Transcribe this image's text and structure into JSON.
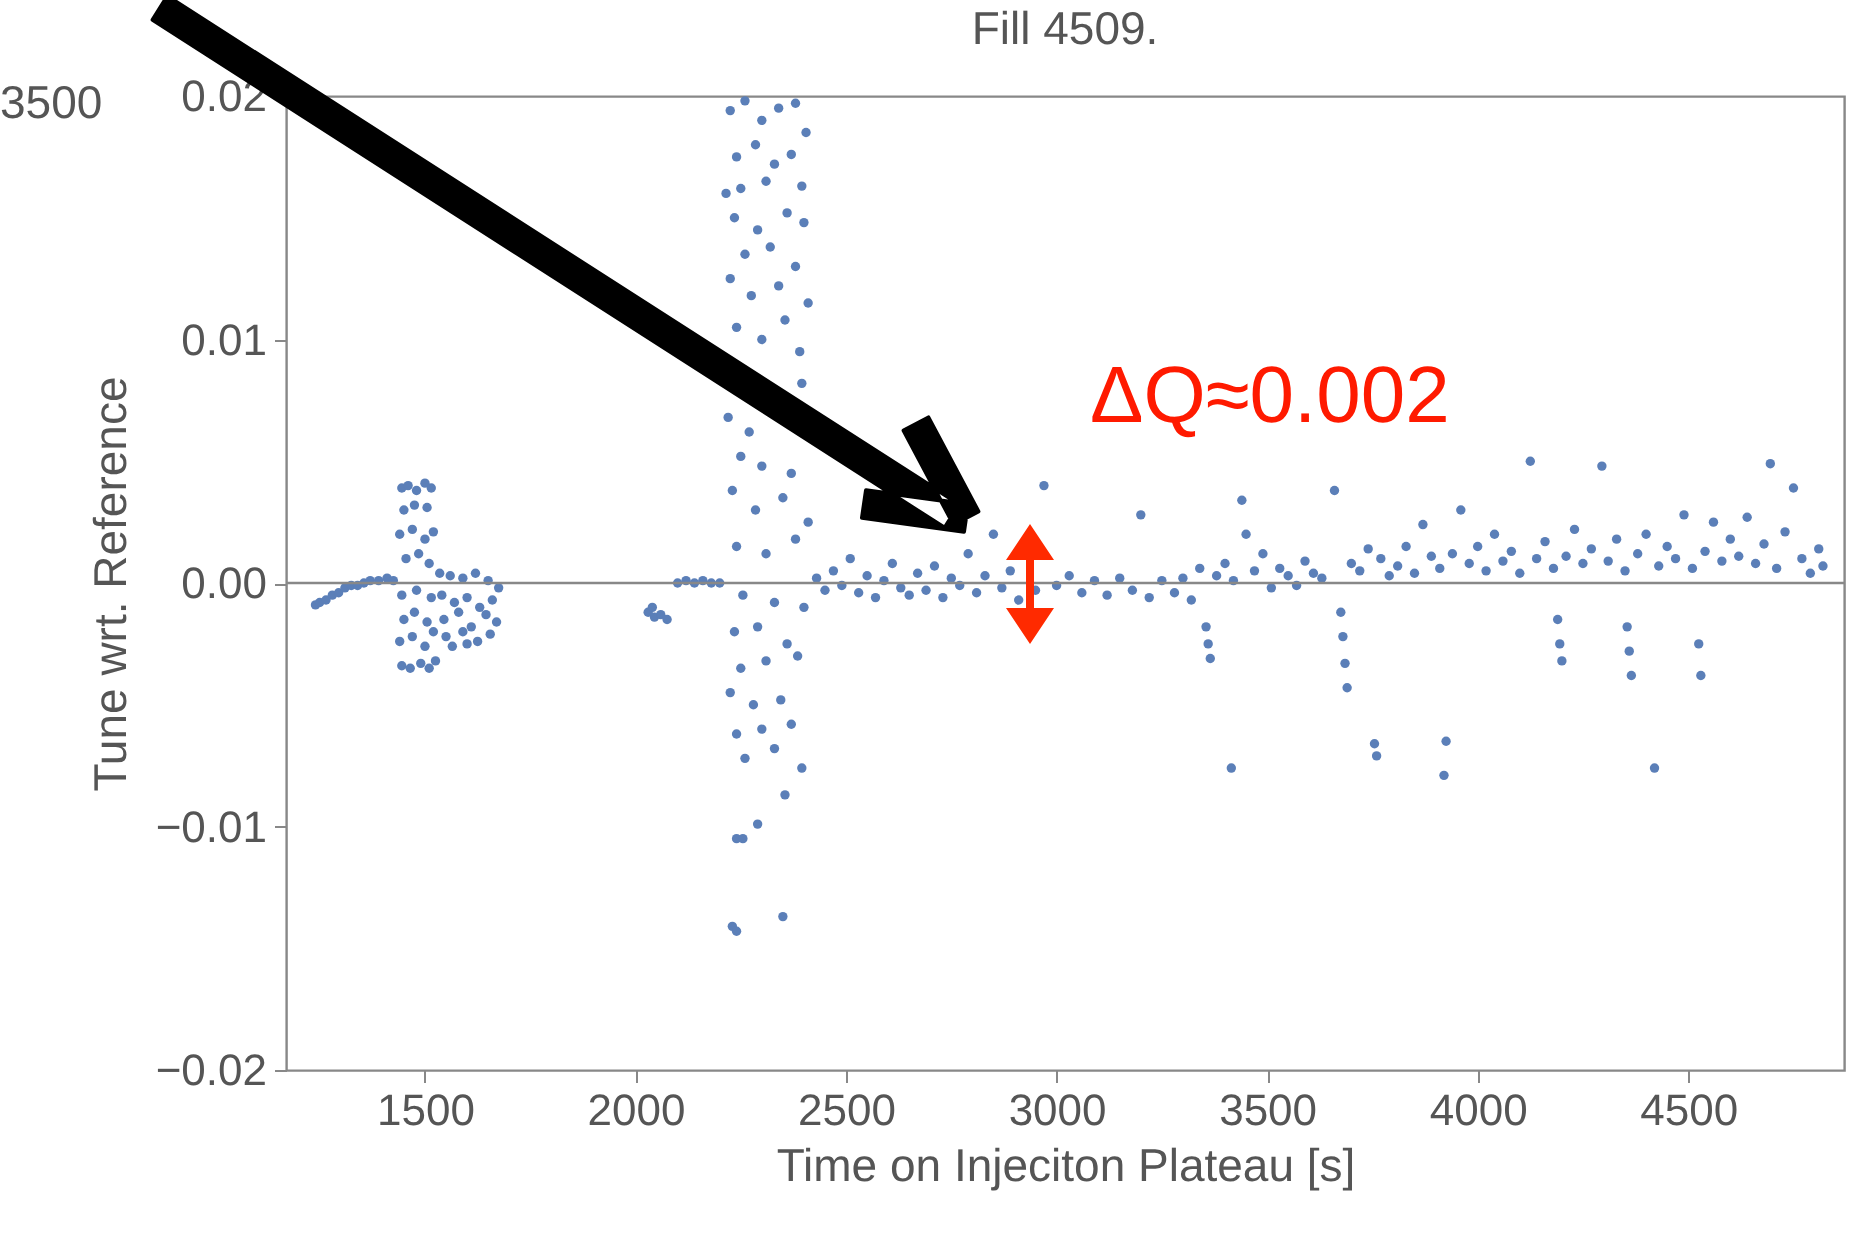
{
  "chart_data": {
    "type": "scatter",
    "title": "Fill 4509.",
    "xlabel": "Time on Injeciton Plateau [s]",
    "ylabel": "Tune wrt. Reference",
    "xlim": [
      1170,
      4870
    ],
    "xticks": [
      1500,
      2000,
      2500,
      3000,
      3500,
      4000,
      4500
    ],
    "ylim": [
      -0.02,
      0.02
    ],
    "yticks": [
      {
        "value": -0.02,
        "label": "−0.02"
      },
      {
        "value": -0.01,
        "label": "−0.01"
      },
      {
        "value": 0,
        "label": "0.00"
      },
      0.01,
      0.02
    ],
    "grid": false,
    "marker": "circle",
    "ref_lines": [
      {
        "axis": "y",
        "value": 0,
        "color": "#888888"
      }
    ],
    "annotations": [
      "ΔQ≈0.002",
      "3500"
    ],
    "series": [
      {
        "color": "#5b7fb8",
        "x": [
          1240,
          1250,
          1265,
          1280,
          1295,
          1310,
          1325,
          1340,
          1355,
          1370,
          1390,
          1410,
          1425,
          1445,
          1460,
          1480,
          1500,
          1515,
          1450,
          1475,
          1505,
          1440,
          1470,
          1500,
          1520,
          1455,
          1485,
          1510,
          1445,
          1480,
          1515,
          1450,
          1475,
          1505,
          1440,
          1470,
          1500,
          1520,
          1445,
          1465,
          1490,
          1510,
          1525,
          1535,
          1560,
          1590,
          1620,
          1650,
          1675,
          1540,
          1570,
          1600,
          1630,
          1660,
          1545,
          1580,
          1610,
          1645,
          1670,
          1550,
          1590,
          1625,
          1655,
          1565,
          1600,
          2030,
          2045,
          2060,
          2075,
          2040,
          2100,
          2120,
          2140,
          2160,
          2180,
          2200,
          2225,
          2260,
          2300,
          2340,
          2380,
          2405,
          2240,
          2285,
          2330,
          2370,
          2215,
          2250,
          2310,
          2395,
          2235,
          2290,
          2360,
          2400,
          2260,
          2320,
          2380,
          2225,
          2275,
          2340,
          2410,
          2240,
          2300,
          2355,
          2390,
          2395,
          2220,
          2270,
          2250,
          2300,
          2370,
          2230,
          2285,
          2350,
          2410,
          2240,
          2310,
          2380,
          2255,
          2330,
          2400,
          2235,
          2290,
          2360,
          2250,
          2310,
          2385,
          2225,
          2280,
          2345,
          2240,
          2300,
          2370,
          2260,
          2330,
          2395,
          2355,
          2240,
          2255,
          2290,
          2230,
          2240,
          2350,
          2430,
          2450,
          2470,
          2490,
          2510,
          2530,
          2550,
          2570,
          2590,
          2610,
          2630,
          2650,
          2670,
          2690,
          2710,
          2730,
          2750,
          2770,
          2790,
          2810,
          2830,
          2850,
          2870,
          2890,
          2910,
          2950,
          2970,
          3000,
          3030,
          3060,
          3090,
          3120,
          3150,
          3180,
          3200,
          3220,
          3250,
          3280,
          3300,
          3320,
          3340,
          3355,
          3360,
          3365,
          3380,
          3400,
          3415,
          3420,
          3440,
          3450,
          3470,
          3490,
          3510,
          3530,
          3550,
          3570,
          3590,
          3610,
          3630,
          3660,
          3675,
          3680,
          3685,
          3690,
          3700,
          3720,
          3740,
          3755,
          3760,
          3770,
          3790,
          3810,
          3830,
          3850,
          3870,
          3890,
          3910,
          3920,
          3925,
          3940,
          3960,
          3980,
          4000,
          4020,
          4040,
          4060,
          4080,
          4100,
          4125,
          4140,
          4160,
          4180,
          4190,
          4195,
          4200,
          4210,
          4230,
          4250,
          4270,
          4295,
          4310,
          4330,
          4350,
          4355,
          4360,
          4365,
          4380,
          4400,
          4420,
          4430,
          4450,
          4470,
          4490,
          4510,
          4525,
          4530,
          4540,
          4560,
          4580,
          4600,
          4620,
          4640,
          4660,
          4680,
          4695,
          4710,
          4730,
          4750,
          4770,
          4790,
          4810,
          4820
        ],
        "values": [
          -0.0009,
          -0.0008,
          -0.0007,
          -0.0005,
          -0.0004,
          -0.0002,
          -0.0001,
          -0.0001,
          0.0,
          0.0001,
          0.0001,
          0.0002,
          0.0001,
          0.0039,
          0.004,
          0.0038,
          0.0041,
          0.0039,
          0.003,
          0.0032,
          0.0031,
          0.002,
          0.0022,
          0.0018,
          0.0021,
          0.001,
          0.0012,
          0.0008,
          -0.0005,
          -0.0003,
          -0.0006,
          -0.0015,
          -0.0012,
          -0.0016,
          -0.0024,
          -0.0022,
          -0.0026,
          -0.002,
          -0.0034,
          -0.0035,
          -0.0033,
          -0.0035,
          -0.0032,
          0.0004,
          0.0003,
          0.0002,
          0.0004,
          0.0001,
          -0.0002,
          -0.0005,
          -0.0008,
          -0.0006,
          -0.001,
          -0.0007,
          -0.0015,
          -0.0012,
          -0.0018,
          -0.0013,
          -0.0016,
          -0.0022,
          -0.002,
          -0.0024,
          -0.0021,
          -0.0026,
          -0.0025,
          -0.0012,
          -0.0014,
          -0.0013,
          -0.0015,
          -0.001,
          0.0,
          0.0001,
          0.0,
          0.0001,
          0.0,
          0.0,
          0.0194,
          0.0198,
          0.019,
          0.0195,
          0.0197,
          0.0185,
          0.0175,
          0.018,
          0.0172,
          0.0176,
          0.016,
          0.0162,
          0.0165,
          0.0163,
          0.015,
          0.0145,
          0.0152,
          0.0148,
          0.0135,
          0.0138,
          0.013,
          0.0125,
          0.0118,
          0.0122,
          0.0115,
          0.0105,
          0.01,
          0.0108,
          0.0095,
          0.0082,
          0.0068,
          0.0062,
          0.0052,
          0.0048,
          0.0045,
          0.0038,
          0.003,
          0.0035,
          0.0025,
          0.0015,
          0.0012,
          0.0018,
          -0.0005,
          -0.0008,
          -0.001,
          -0.002,
          -0.0018,
          -0.0025,
          -0.0035,
          -0.0032,
          -0.003,
          -0.0045,
          -0.005,
          -0.0048,
          -0.0062,
          -0.006,
          -0.0058,
          -0.0072,
          -0.0068,
          -0.0076,
          -0.0087,
          -0.0105,
          -0.0105,
          -0.0099,
          -0.0141,
          -0.0143,
          -0.0137,
          0.0002,
          -0.0003,
          0.0005,
          -0.0001,
          0.001,
          -0.0004,
          0.0003,
          -0.0006,
          0.0001,
          0.0008,
          -0.0002,
          -0.0005,
          0.0004,
          -0.0003,
          0.0007,
          -0.0006,
          0.0002,
          -0.0001,
          0.0012,
          -0.0004,
          0.0003,
          0.002,
          -0.0002,
          0.0005,
          -0.0007,
          -0.0003,
          0.004,
          -0.0001,
          0.0003,
          -0.0004,
          0.0001,
          -0.0005,
          0.0002,
          -0.0003,
          0.0028,
          -0.0006,
          0.0001,
          -0.0004,
          0.0002,
          -0.0007,
          0.0006,
          -0.0018,
          -0.0025,
          -0.0031,
          0.0003,
          0.0008,
          -0.0076,
          0.0001,
          0.0034,
          0.002,
          0.0005,
          0.0012,
          -0.0002,
          0.0006,
          0.0003,
          -0.0001,
          0.0009,
          0.0004,
          0.0002,
          0.0038,
          -0.0012,
          -0.0022,
          -0.0033,
          -0.0043,
          0.0008,
          0.0005,
          0.0014,
          -0.0066,
          -0.0071,
          0.001,
          0.0003,
          0.0007,
          0.0015,
          0.0004,
          0.0024,
          0.0011,
          0.0006,
          -0.0079,
          -0.0065,
          0.0012,
          0.003,
          0.0008,
          0.0015,
          0.0005,
          0.002,
          0.0009,
          0.0013,
          0.0004,
          0.005,
          0.001,
          0.0017,
          0.0006,
          -0.0015,
          -0.0025,
          -0.0032,
          0.0011,
          0.0022,
          0.0008,
          0.0014,
          0.0048,
          0.0009,
          0.0018,
          0.0005,
          -0.0018,
          -0.0028,
          -0.0038,
          0.0012,
          0.002,
          -0.0076,
          0.0007,
          0.0015,
          0.001,
          0.0028,
          0.0006,
          -0.0025,
          -0.0038,
          0.0013,
          0.0025,
          0.0009,
          0.0018,
          0.0011,
          0.0027,
          0.0008,
          0.0016,
          0.0049,
          0.0006,
          0.0021,
          0.0039,
          0.001,
          0.0004,
          0.0014,
          0.0007
        ]
      }
    ]
  }
}
